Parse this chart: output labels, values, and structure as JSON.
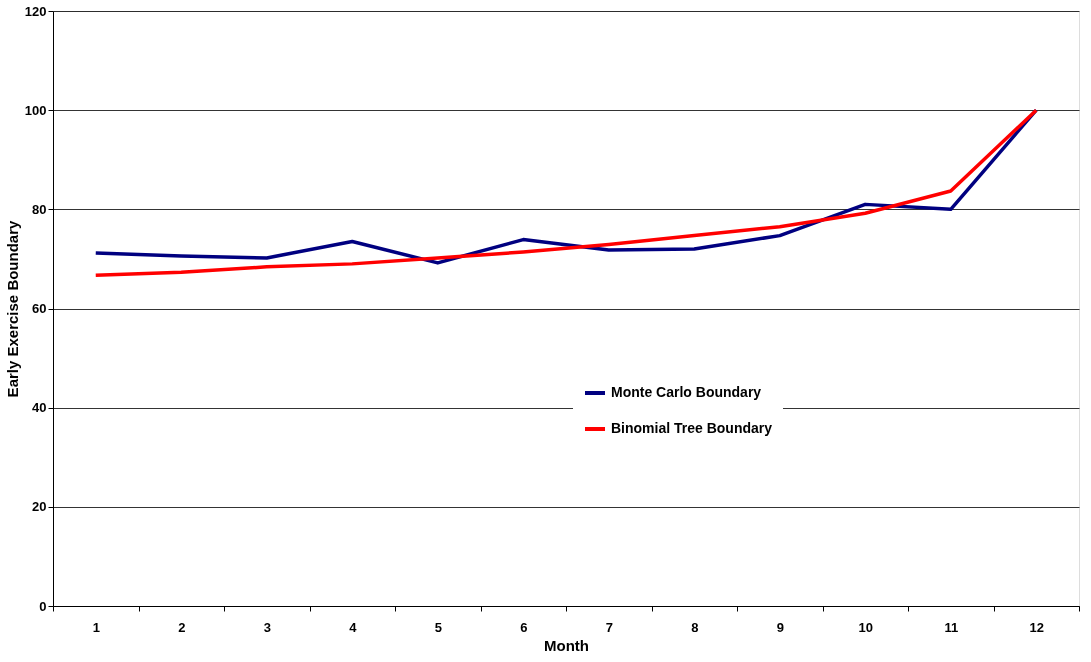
{
  "chart_data": {
    "type": "line",
    "xlabel": "Month",
    "ylabel": "Early Exercise Boundary",
    "categories": [
      "1",
      "2",
      "3",
      "4",
      "5",
      "6",
      "7",
      "8",
      "9",
      "10",
      "11",
      "12"
    ],
    "series": [
      {
        "name": "Monte Carlo Boundary",
        "color": "#000080",
        "values": [
          71.2,
          70.6,
          70.2,
          73.5,
          69.2,
          73.9,
          71.8,
          72.0,
          74.7,
          81.0,
          80.0,
          100
        ]
      },
      {
        "name": "Binomial Tree Boundary",
        "color": "#ff0000",
        "values": [
          66.7,
          67.3,
          68.4,
          69.0,
          70.2,
          71.4,
          72.9,
          74.7,
          76.5,
          79.2,
          83.7,
          100
        ]
      }
    ],
    "ylim": [
      0,
      120
    ],
    "yticks": [
      0,
      20,
      40,
      60,
      80,
      100,
      120
    ],
    "grid": "y",
    "legend": "center",
    "marker": "none",
    "line_style": "solid"
  }
}
